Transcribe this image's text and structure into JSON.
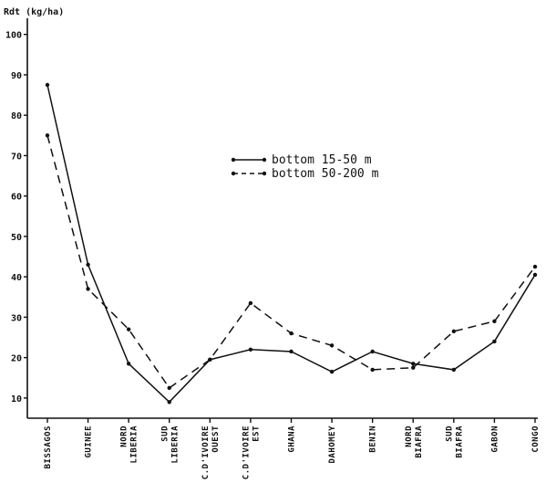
{
  "chart_data": {
    "type": "line",
    "ylabel": "Rdt (kg/ha)",
    "xlabel": "",
    "ylim": [
      5,
      104
    ],
    "yticks": [
      10,
      20,
      30,
      40,
      50,
      60,
      70,
      80,
      90,
      100
    ],
    "grid": false,
    "legend_position": "center-right",
    "categories": [
      [
        "BISSAGOS"
      ],
      [
        "GUINEE"
      ],
      [
        "NORD",
        "LIBERIA"
      ],
      [
        "SUD",
        "LIBERIA"
      ],
      [
        "C.D'IVOIRE",
        "OUEST"
      ],
      [
        "C.D'IVOIRE",
        "EST"
      ],
      [
        "GHANA"
      ],
      [
        "DAHOMEY"
      ],
      [
        "BENIN"
      ],
      [
        "NORD",
        "BIAFRA"
      ],
      [
        "SUD",
        "BIAFRA"
      ],
      [
        "GABON"
      ],
      [
        "CONGO"
      ]
    ],
    "series": [
      {
        "name": "bottom 15-50 m",
        "style": "solid",
        "color": "#111111",
        "values": [
          87.5,
          43,
          18.5,
          9,
          19.5,
          22,
          21.5,
          16.5,
          21.5,
          18.5,
          17,
          24,
          40.5
        ]
      },
      {
        "name": "bottom 50-200 m",
        "style": "dashed",
        "color": "#111111",
        "values": [
          75,
          37,
          27,
          12.5,
          19.5,
          33.5,
          26,
          23,
          17,
          17.5,
          26.5,
          29,
          42.5
        ]
      }
    ]
  }
}
